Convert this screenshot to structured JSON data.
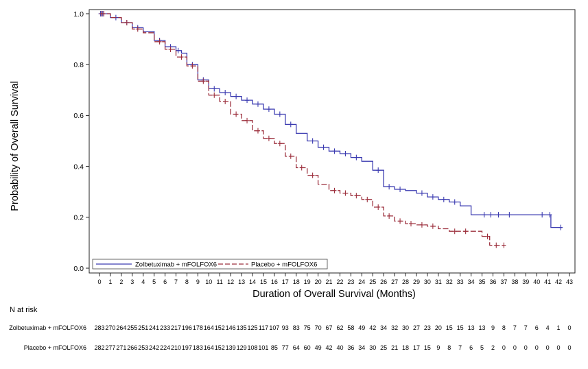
{
  "chart_data": {
    "type": "line",
    "subtype": "kaplan-meier",
    "xlabel": "Duration of Overall Survival (Months)",
    "ylabel": "Probability of Overall Survival",
    "xlim": [
      0,
      43
    ],
    "ylim": [
      0.0,
      1.0
    ],
    "x_ticks": [
      0,
      1,
      2,
      3,
      4,
      5,
      6,
      7,
      8,
      9,
      10,
      11,
      12,
      13,
      14,
      15,
      16,
      17,
      18,
      19,
      20,
      21,
      22,
      23,
      24,
      25,
      26,
      27,
      28,
      29,
      30,
      31,
      32,
      33,
      34,
      35,
      36,
      37,
      38,
      39,
      40,
      41,
      42,
      43
    ],
    "y_ticks": [
      "0.0",
      "0.2",
      "0.4",
      "0.6",
      "0.8",
      "1.0"
    ],
    "grid": false,
    "legend_position": "bottom-left",
    "series": [
      {
        "name": "Zolbetuximab + mFOLFOX6",
        "color": "#3a3ab0",
        "style": "solid",
        "points": [
          [
            0,
            1.0
          ],
          [
            1,
            0.985
          ],
          [
            2,
            0.965
          ],
          [
            3,
            0.945
          ],
          [
            4,
            0.93
          ],
          [
            5,
            0.895
          ],
          [
            6,
            0.87
          ],
          [
            7,
            0.855
          ],
          [
            7.5,
            0.845
          ],
          [
            8,
            0.8
          ],
          [
            9,
            0.74
          ],
          [
            10,
            0.705
          ],
          [
            11,
            0.69
          ],
          [
            12,
            0.675
          ],
          [
            13,
            0.66
          ],
          [
            14,
            0.645
          ],
          [
            15,
            0.625
          ],
          [
            16,
            0.605
          ],
          [
            17,
            0.565
          ],
          [
            18,
            0.53
          ],
          [
            19,
            0.5
          ],
          [
            20,
            0.475
          ],
          [
            21,
            0.46
          ],
          [
            22,
            0.45
          ],
          [
            23,
            0.435
          ],
          [
            24,
            0.42
          ],
          [
            25,
            0.385
          ],
          [
            26,
            0.32
          ],
          [
            27,
            0.31
          ],
          [
            28,
            0.305
          ],
          [
            29,
            0.295
          ],
          [
            30,
            0.28
          ],
          [
            31,
            0.27
          ],
          [
            32,
            0.26
          ],
          [
            33,
            0.245
          ],
          [
            34,
            0.21
          ],
          [
            36,
            0.21
          ],
          [
            38,
            0.21
          ],
          [
            40,
            0.21
          ],
          [
            41,
            0.21
          ],
          [
            41.3,
            0.16
          ],
          [
            42.3,
            0.16
          ]
        ],
        "censor_x": [
          0.1,
          0.2,
          0.3,
          1.5,
          2.5,
          3.5,
          5.5,
          6.5,
          7.2,
          8.5,
          9.5,
          10.5,
          11.5,
          12.5,
          13.5,
          14.5,
          15.5,
          16.5,
          17.5,
          19.5,
          20.5,
          21.5,
          22.5,
          23.5,
          25.5,
          26.5,
          27.5,
          29.5,
          30.5,
          31.5,
          32.5,
          35.2,
          35.8,
          36.5,
          37.5,
          40.5,
          41.2,
          42.2
        ]
      },
      {
        "name": "Placebo + mFOLFOX6",
        "color": "#9c2f3c",
        "style": "dashed",
        "points": [
          [
            0,
            1.0
          ],
          [
            1,
            0.985
          ],
          [
            2,
            0.965
          ],
          [
            3,
            0.94
          ],
          [
            4,
            0.925
          ],
          [
            5,
            0.89
          ],
          [
            6,
            0.86
          ],
          [
            7,
            0.83
          ],
          [
            8,
            0.795
          ],
          [
            9,
            0.735
          ],
          [
            10,
            0.68
          ],
          [
            11,
            0.655
          ],
          [
            12,
            0.605
          ],
          [
            13,
            0.58
          ],
          [
            14,
            0.54
          ],
          [
            15,
            0.51
          ],
          [
            16,
            0.49
          ],
          [
            17,
            0.44
          ],
          [
            18,
            0.395
          ],
          [
            19,
            0.365
          ],
          [
            20,
            0.33
          ],
          [
            21,
            0.305
          ],
          [
            22,
            0.295
          ],
          [
            23,
            0.285
          ],
          [
            24,
            0.27
          ],
          [
            25,
            0.24
          ],
          [
            26,
            0.205
          ],
          [
            27,
            0.185
          ],
          [
            28,
            0.175
          ],
          [
            29,
            0.17
          ],
          [
            30,
            0.165
          ],
          [
            31,
            0.155
          ],
          [
            32,
            0.145
          ],
          [
            33,
            0.145
          ],
          [
            34,
            0.145
          ],
          [
            35,
            0.125
          ],
          [
            35.7,
            0.09
          ],
          [
            37,
            0.09
          ]
        ],
        "censor_x": [
          0.2,
          0.4,
          2.5,
          3.5,
          5.5,
          6.5,
          7.5,
          8.5,
          9.5,
          10.5,
          11.5,
          12.5,
          13.5,
          14.5,
          15.5,
          16.5,
          17.5,
          18.5,
          19.5,
          21.5,
          22.5,
          23.5,
          24.5,
          25.5,
          26.5,
          27.5,
          28.5,
          29.5,
          30.5,
          32.5,
          33.5,
          35.5,
          36.3,
          37.0
        ]
      }
    ],
    "risk_table": {
      "title": "N at risk",
      "rows": [
        {
          "label": "Zolbetuximab + mFOLFOX6",
          "values": [
            "283",
            "270",
            "264",
            "255",
            "251",
            "241",
            "233",
            "217",
            "196",
            "178",
            "164",
            "152",
            "146",
            "135",
            "125",
            "117",
            "107",
            "93",
            "83",
            "75",
            "70",
            "67",
            "62",
            "58",
            "49",
            "42",
            "34",
            "32",
            "30",
            "27",
            "23",
            "20",
            "15",
            "15",
            "13",
            "13",
            "9",
            "8",
            "7",
            "7",
            "6",
            "4",
            "1",
            "0"
          ]
        },
        {
          "label": "Placebo + mFOLFOX6",
          "values": [
            "282",
            "277",
            "271",
            "266",
            "253",
            "242",
            "224",
            "210",
            "197",
            "183",
            "164",
            "152",
            "139",
            "129",
            "108",
            "101",
            "85",
            "77",
            "64",
            "60",
            "49",
            "42",
            "40",
            "36",
            "34",
            "30",
            "25",
            "21",
            "18",
            "17",
            "15",
            "9",
            "8",
            "7",
            "6",
            "5",
            "2",
            "0",
            "0",
            "0",
            "0",
            "0",
            "0",
            "0"
          ]
        }
      ]
    }
  }
}
